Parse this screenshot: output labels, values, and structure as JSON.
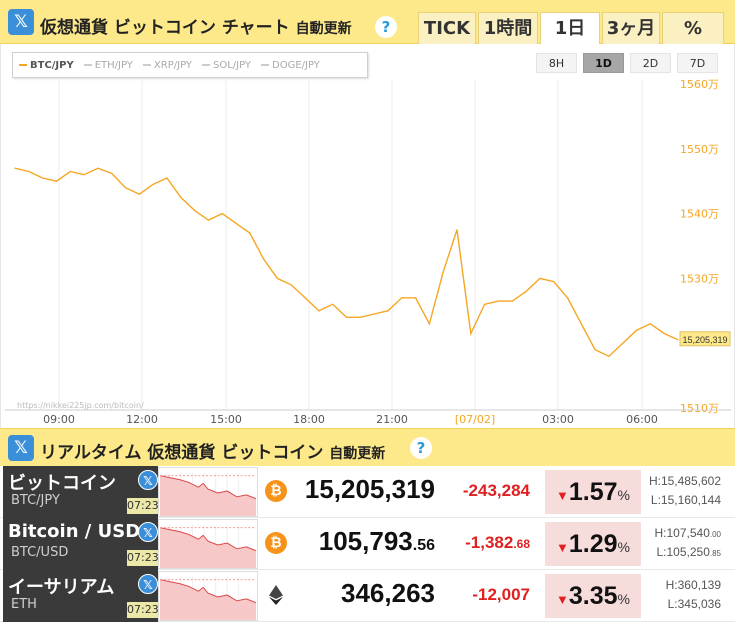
{
  "header": {
    "title": "仮想通貨 ビットコイン チャート",
    "auto_update": "自動更新",
    "help": "?",
    "x_logo": "𝕏",
    "tabs": [
      "TICK",
      "1時間",
      "1日",
      "3ヶ月",
      "%"
    ],
    "active_tab": "1日"
  },
  "legend": {
    "items": [
      "BTC/JPY",
      "ETH/JPY",
      "XRP/JPY",
      "SOL/JPY",
      "DOGE/JPY"
    ],
    "active": "BTC/JPY"
  },
  "range_buttons": [
    "8H",
    "1D",
    "2D",
    "7D"
  ],
  "active_range": "1D",
  "watermark": "https://nikkei225jp.com/bitcoin/",
  "chart_data": {
    "type": "line",
    "series": [
      {
        "name": "BTC/JPY",
        "color": "#f5a623"
      }
    ],
    "x_ticks": [
      "09:00",
      "12:00",
      "15:00",
      "18:00",
      "21:00",
      "[07/02]",
      "03:00",
      "06:00"
    ],
    "y_ticks": [
      "1560万",
      "1550万",
      "1540万",
      "1530万",
      "1510万"
    ],
    "ylim": [
      15100000,
      15600000
    ],
    "last_value_label": "15,205,319",
    "x": [
      0,
      0.5,
      1,
      1.5,
      2,
      2.5,
      3,
      3.5,
      4,
      4.5,
      5,
      5.5,
      6,
      6.5,
      7,
      7.5,
      8,
      8.5,
      9,
      9.5,
      10,
      10.5,
      11,
      11.5,
      12,
      12.5,
      13,
      13.5,
      14,
      14.5,
      15,
      15.5,
      16,
      16.5,
      17,
      17.5,
      18,
      18.5,
      19,
      19.5,
      20,
      20.5,
      21,
      21.5,
      22,
      22.5,
      23,
      23.5,
      24
    ],
    "values": [
      15470000,
      15465000,
      15455000,
      15450000,
      15465000,
      15460000,
      15470000,
      15462000,
      15440000,
      15430000,
      15445000,
      15455000,
      15425000,
      15405000,
      15390000,
      15400000,
      15385000,
      15370000,
      15330000,
      15300000,
      15290000,
      15270000,
      15250000,
      15260000,
      15240000,
      15240000,
      15245000,
      15250000,
      15270000,
      15270000,
      15230000,
      15310000,
      15375000,
      15215000,
      15260000,
      15265000,
      15265000,
      15280000,
      15300000,
      15295000,
      15270000,
      15230000,
      15190000,
      15180000,
      15200000,
      15220000,
      15230000,
      15215000,
      15205319
    ]
  },
  "section2": {
    "title": "リアルタイム 仮想通貨 ビットコイン",
    "auto_update": "自動更新",
    "help": "?"
  },
  "rows": [
    {
      "name": "ビットコイン",
      "symbol": "BTC/JPY",
      "time": "07:23",
      "price_main": "15,205,319",
      "price_dec": "",
      "change_main": "-243,284",
      "change_dec": "",
      "pct": "1.57",
      "pct_unit": "%",
      "high_main": "H:15,485,602",
      "high_dec": "",
      "low_main": "L:15,160,144",
      "low_dec": "",
      "coin": "bitcoin"
    },
    {
      "name": "Bitcoin / USD",
      "symbol": "BTC/USD",
      "time": "07:23",
      "price_main": "105,793",
      "price_dec": ".56",
      "change_main": "-1,382",
      "change_dec": ".68",
      "pct": "1.29",
      "pct_unit": "%",
      "high_main": "H:107,540",
      "high_dec": ".00",
      "low_main": "L:105,250",
      "low_dec": ".85",
      "coin": "bitcoin"
    },
    {
      "name": "イーサリアム",
      "symbol": "ETH",
      "time": "07:23",
      "price_main": "346,263",
      "price_dec": "",
      "change_main": "-12,007",
      "change_dec": "",
      "pct": "3.35",
      "pct_unit": "%",
      "high_main": "H:360,139",
      "high_dec": "",
      "low_main": "L:345,036",
      "low_dec": "",
      "coin": "ethereum"
    }
  ],
  "colors": {
    "accent": "#fde98a",
    "line": "#f5a623",
    "down": "#e02020",
    "x_blue": "#3b8fd9"
  }
}
